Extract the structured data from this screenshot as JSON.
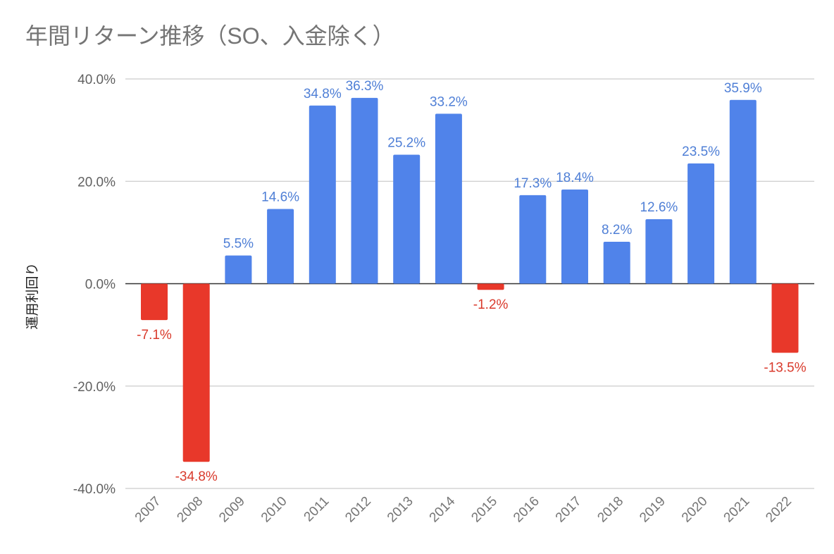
{
  "chart_data": {
    "type": "bar",
    "title": "年間リターン推移（SO、入金除く）",
    "xlabel": "",
    "ylabel": "運用利回り",
    "categories": [
      "2007",
      "2008",
      "2009",
      "2010",
      "2011",
      "2012",
      "2013",
      "2014",
      "2015",
      "2016",
      "2017",
      "2018",
      "2019",
      "2020",
      "2021",
      "2022"
    ],
    "values": [
      -7.1,
      -34.8,
      5.5,
      14.6,
      34.8,
      36.3,
      25.2,
      33.2,
      -1.2,
      17.3,
      18.4,
      8.2,
      12.6,
      23.5,
      35.9,
      -13.5
    ],
    "data_labels": [
      "-7.1%",
      "-34.8%",
      "5.5%",
      "14.6%",
      "34.8%",
      "36.3%",
      "25.2%",
      "33.2%",
      "-1.2%",
      "17.3%",
      "18.4%",
      "8.2%",
      "12.6%",
      "23.5%",
      "35.9%",
      "-13.5%"
    ],
    "ylim": [
      -40,
      40
    ],
    "yticks": [
      40,
      20,
      0,
      -20,
      -40
    ],
    "ytick_labels": [
      "40.0%",
      "20.0%",
      "0.0%",
      "-20.0%",
      "-40.0%"
    ],
    "grid": true,
    "legend": "none",
    "colors": {
      "positive": "#5083ea",
      "negative": "#e8382a",
      "positive_label": "#4f7fd6",
      "negative_label": "#d93a2c"
    }
  }
}
